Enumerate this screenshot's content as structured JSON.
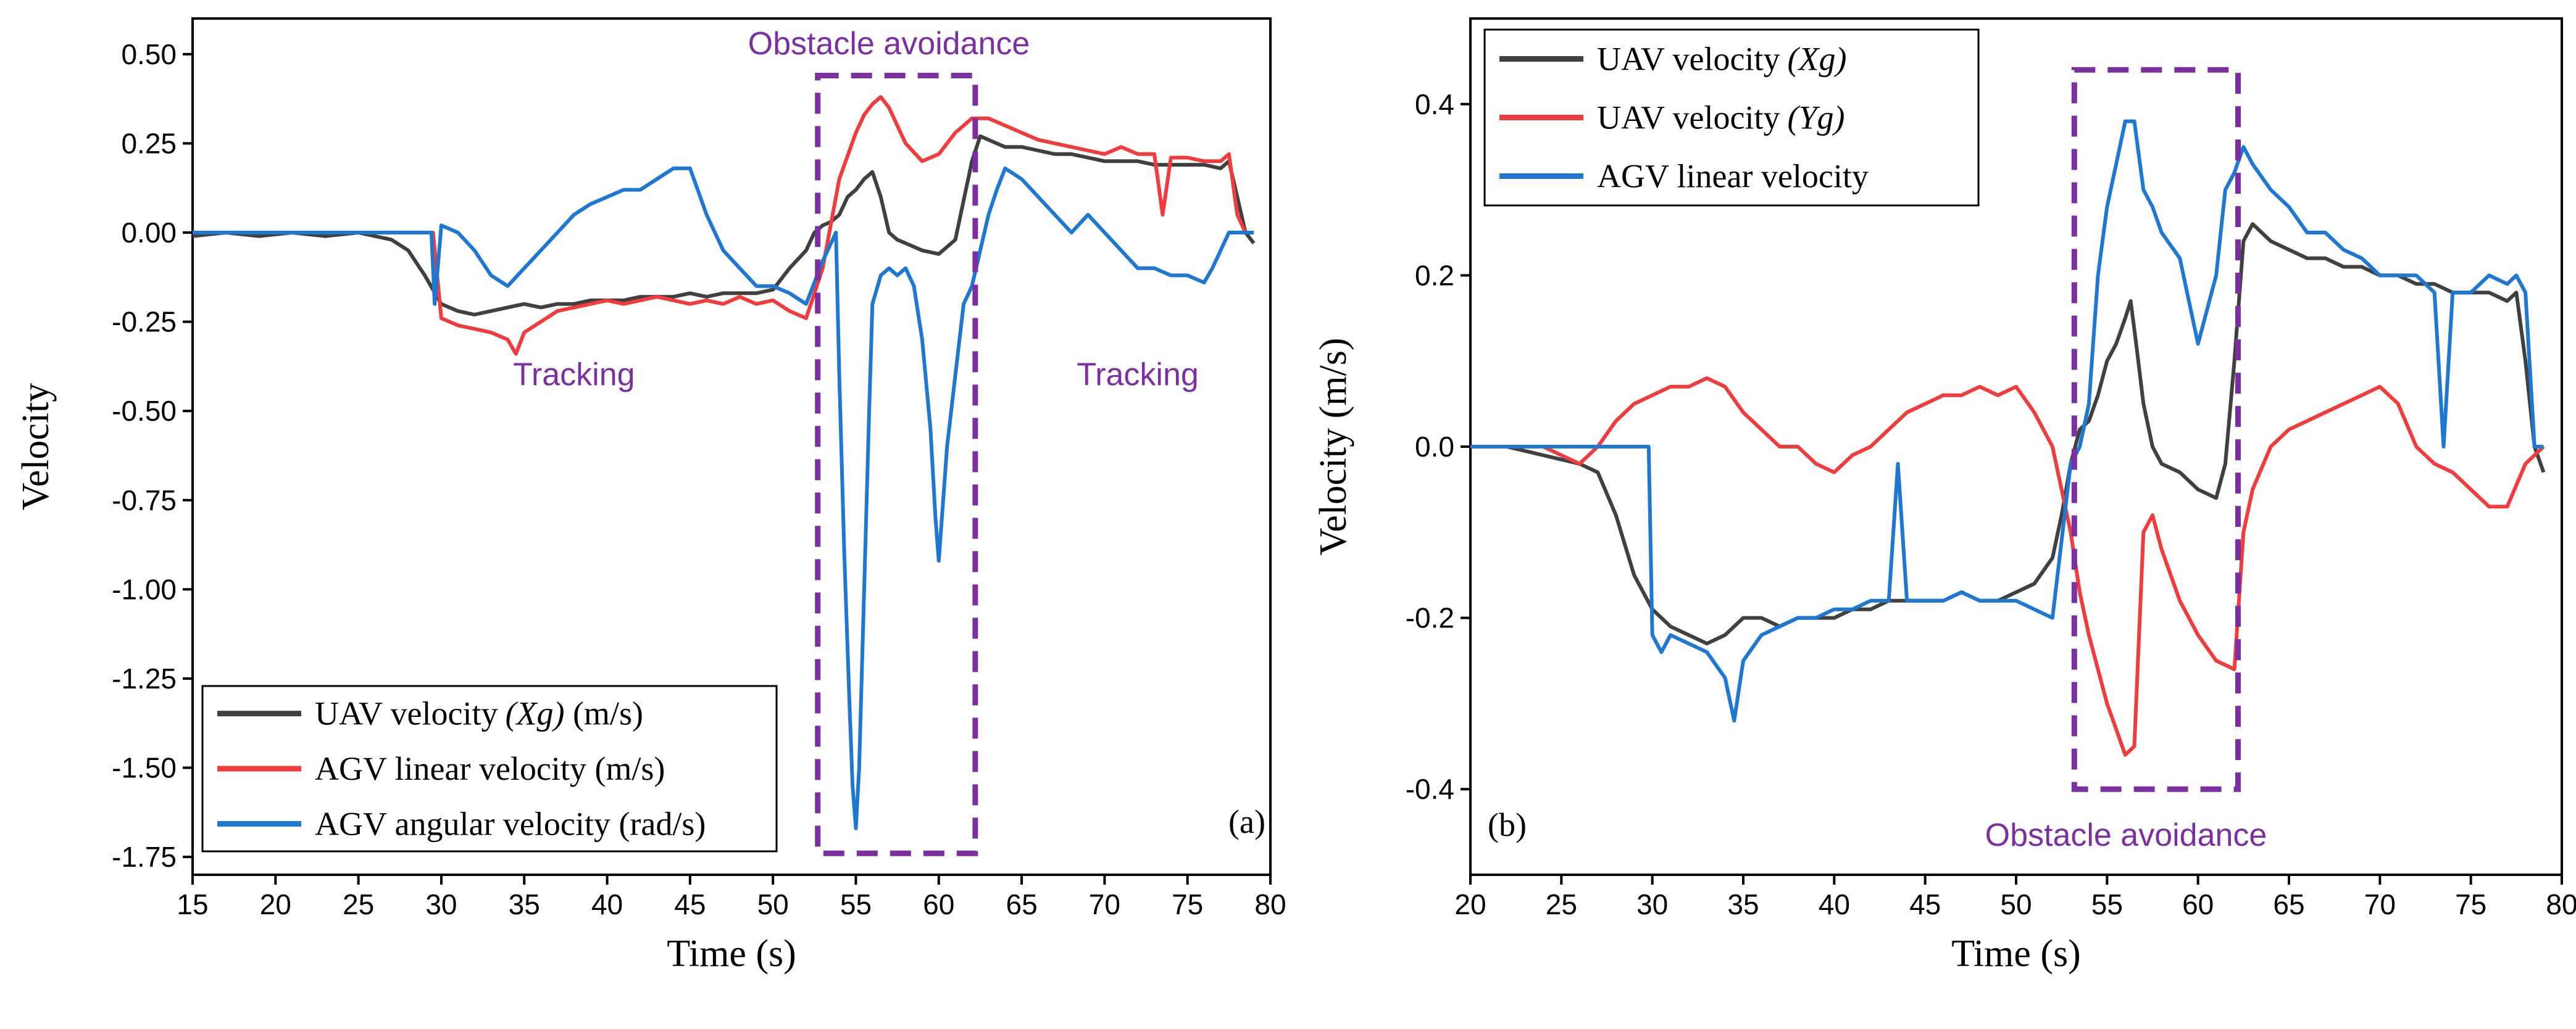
{
  "chart_data": [
    {
      "type": "line",
      "panel_label": "(a)",
      "xlabel": "Time (s)",
      "ylabel": "Velocity",
      "xlim": [
        15,
        80
      ],
      "ylim": [
        -1.8,
        0.6
      ],
      "xticks": [
        "15",
        "20",
        "25",
        "30",
        "35",
        "40",
        "45",
        "50",
        "55",
        "60",
        "65",
        "70",
        "75",
        "80"
      ],
      "yticks": [
        "0.50",
        "0.25",
        "0.00",
        "-0.25",
        "-0.50",
        "-0.75",
        "-1.00",
        "-1.25",
        "-1.50",
        "-1.75"
      ],
      "legend_position": "bottom-left",
      "annotations": [
        {
          "text": "Obstacle avoidance",
          "kind": "dashed-box",
          "x_range": [
            52.7,
            62.2
          ],
          "y_range": [
            -1.74,
            0.44
          ]
        },
        {
          "text": "Tracking",
          "x": 38,
          "y": -0.4
        },
        {
          "text": "Tracking",
          "x": 72,
          "y": -0.4
        }
      ],
      "series": [
        {
          "name": "UAV velocity",
          "legend_math": "(Xg)",
          "legend_suffix": " (m/s)",
          "color": "#404040",
          "x": [
            15,
            17,
            19,
            21,
            23,
            25,
            27,
            28,
            29,
            30,
            31,
            32,
            33,
            34,
            35,
            36,
            37,
            38,
            39,
            40,
            41,
            42,
            43,
            44,
            45,
            46,
            47,
            48,
            49,
            50,
            51,
            52,
            52.5,
            53,
            53.5,
            54,
            54.5,
            55,
            55.5,
            56,
            56.5,
            57,
            57.5,
            58,
            59,
            60,
            61,
            62,
            62.5,
            63,
            64,
            65,
            66,
            67,
            68,
            69,
            70,
            71,
            72,
            73,
            74,
            75,
            76,
            77,
            77.5,
            78,
            78.5,
            79
          ],
          "y": [
            -0.01,
            0.0,
            -0.01,
            0.0,
            -0.01,
            0.0,
            -0.02,
            -0.05,
            -0.12,
            -0.2,
            -0.22,
            -0.23,
            -0.22,
            -0.21,
            -0.2,
            -0.21,
            -0.2,
            -0.2,
            -0.19,
            -0.19,
            -0.19,
            -0.18,
            -0.18,
            -0.18,
            -0.17,
            -0.18,
            -0.17,
            -0.17,
            -0.17,
            -0.16,
            -0.1,
            -0.05,
            0.0,
            0.02,
            0.03,
            0.05,
            0.1,
            0.12,
            0.15,
            0.17,
            0.1,
            0.0,
            -0.02,
            -0.03,
            -0.05,
            -0.06,
            -0.02,
            0.2,
            0.27,
            0.26,
            0.24,
            0.24,
            0.23,
            0.22,
            0.22,
            0.21,
            0.2,
            0.2,
            0.2,
            0.19,
            0.19,
            0.19,
            0.19,
            0.18,
            0.2,
            0.1,
            0.0,
            -0.03
          ]
        },
        {
          "name": "AGV linear velocity (m/s)",
          "color": "#f03c3c",
          "x": [
            15,
            20,
            25,
            29.5,
            30,
            31,
            32,
            33,
            34,
            34.5,
            35,
            36,
            37,
            38,
            39,
            40,
            41,
            42,
            43,
            44,
            45,
            46,
            47,
            48,
            49,
            50,
            51,
            52,
            53,
            54,
            55,
            55.5,
            56,
            56.5,
            57,
            57.5,
            58,
            59,
            60,
            61,
            62,
            63,
            64,
            65,
            66,
            67,
            68,
            69,
            70,
            71,
            72,
            73,
            73.5,
            74,
            75,
            76,
            77,
            77.5,
            78,
            78.5,
            79
          ],
          "y": [
            0.0,
            0.0,
            0.0,
            0.0,
            -0.24,
            -0.26,
            -0.27,
            -0.28,
            -0.3,
            -0.34,
            -0.28,
            -0.25,
            -0.22,
            -0.21,
            -0.2,
            -0.19,
            -0.2,
            -0.19,
            -0.18,
            -0.19,
            -0.2,
            -0.19,
            -0.2,
            -0.18,
            -0.2,
            -0.19,
            -0.22,
            -0.24,
            -0.1,
            0.15,
            0.28,
            0.33,
            0.36,
            0.38,
            0.35,
            0.3,
            0.25,
            0.2,
            0.22,
            0.28,
            0.32,
            0.32,
            0.3,
            0.28,
            0.26,
            0.25,
            0.24,
            0.23,
            0.22,
            0.24,
            0.22,
            0.22,
            0.05,
            0.21,
            0.21,
            0.2,
            0.2,
            0.22,
            0.05,
            0.0,
            0.0
          ]
        },
        {
          "name": "AGV angular velocity (rad/s)",
          "color": "#1e78d2",
          "x": [
            15,
            20,
            25,
            29.4,
            29.6,
            30,
            31,
            32,
            33,
            34,
            35,
            36,
            37,
            38,
            39,
            40,
            41,
            42,
            43,
            44,
            45,
            46,
            47,
            48,
            49,
            50,
            51,
            52,
            53,
            53.8,
            54,
            54.3,
            54.6,
            54.8,
            55,
            55.2,
            55.5,
            55.8,
            56,
            56.5,
            57,
            57.5,
            58,
            58.5,
            59,
            59.5,
            59.8,
            60,
            60.5,
            61,
            61.5,
            62,
            62.5,
            63,
            63.5,
            64,
            65,
            66,
            67,
            68,
            69,
            70,
            71,
            72,
            73,
            74,
            75,
            76,
            76.5,
            77,
            77.5,
            78,
            78.5,
            79
          ],
          "y": [
            0.0,
            0.0,
            0.0,
            0.0,
            -0.2,
            0.02,
            0.0,
            -0.05,
            -0.12,
            -0.15,
            -0.1,
            -0.05,
            0.0,
            0.05,
            0.08,
            0.1,
            0.12,
            0.12,
            0.15,
            0.18,
            0.18,
            0.05,
            -0.05,
            -0.1,
            -0.15,
            -0.15,
            -0.17,
            -0.2,
            -0.08,
            0.0,
            -0.4,
            -0.9,
            -1.3,
            -1.55,
            -1.67,
            -1.5,
            -1.0,
            -0.5,
            -0.2,
            -0.12,
            -0.1,
            -0.12,
            -0.1,
            -0.15,
            -0.3,
            -0.55,
            -0.8,
            -0.92,
            -0.6,
            -0.4,
            -0.2,
            -0.15,
            -0.05,
            0.05,
            0.12,
            0.18,
            0.15,
            0.1,
            0.05,
            0.0,
            0.05,
            0.0,
            -0.05,
            -0.1,
            -0.1,
            -0.12,
            -0.12,
            -0.14,
            -0.1,
            -0.05,
            0.0,
            0.0,
            0.0,
            0.0
          ]
        }
      ]
    },
    {
      "type": "line",
      "panel_label": "(b)",
      "xlabel": "Time (s)",
      "ylabel": "Velocity (m/s)",
      "xlim": [
        20,
        80
      ],
      "ylim": [
        -0.5,
        0.5
      ],
      "xticks": [
        "20",
        "25",
        "30",
        "35",
        "40",
        "45",
        "50",
        "55",
        "60",
        "65",
        "70",
        "75",
        "80"
      ],
      "yticks": [
        "0.4",
        "0.2",
        "0.0",
        "-0.2",
        "-0.4"
      ],
      "legend_position": "top-left",
      "annotations": [
        {
          "text": "Obstacle avoidance",
          "kind": "dashed-box",
          "x_range": [
            53.2,
            62.2
          ],
          "y_range": [
            -0.4,
            0.44
          ]
        }
      ],
      "series": [
        {
          "name": "UAV velocity",
          "legend_math": "(Xg)",
          "color": "#404040",
          "x": [
            20,
            22,
            24,
            26,
            27,
            28,
            29,
            30,
            31,
            32,
            33,
            34,
            35,
            36,
            37,
            38,
            39,
            40,
            41,
            42,
            43,
            44,
            45,
            46,
            47,
            48,
            49,
            50,
            51,
            52,
            52.5,
            53,
            53.5,
            54,
            54.5,
            55,
            55.5,
            56,
            56.3,
            56.6,
            57,
            57.5,
            58,
            59,
            60,
            61,
            61.5,
            62,
            62.5,
            63,
            64,
            65,
            66,
            67,
            68,
            69,
            70,
            71,
            72,
            73,
            74,
            75,
            76,
            77,
            77.5,
            78,
            78.5,
            79
          ],
          "y": [
            0.0,
            0.0,
            -0.01,
            -0.02,
            -0.03,
            -0.08,
            -0.15,
            -0.19,
            -0.21,
            -0.22,
            -0.23,
            -0.22,
            -0.2,
            -0.2,
            -0.21,
            -0.2,
            -0.2,
            -0.2,
            -0.19,
            -0.19,
            -0.18,
            -0.18,
            -0.18,
            -0.18,
            -0.17,
            -0.18,
            -0.18,
            -0.17,
            -0.16,
            -0.13,
            -0.08,
            -0.02,
            0.02,
            0.03,
            0.06,
            0.1,
            0.12,
            0.15,
            0.17,
            0.12,
            0.05,
            0.0,
            -0.02,
            -0.03,
            -0.05,
            -0.06,
            -0.02,
            0.1,
            0.24,
            0.26,
            0.24,
            0.23,
            0.22,
            0.22,
            0.21,
            0.21,
            0.2,
            0.2,
            0.19,
            0.19,
            0.18,
            0.18,
            0.18,
            0.17,
            0.18,
            0.1,
            0.0,
            -0.03
          ]
        },
        {
          "name": "UAV velocity",
          "legend_math": "(Yg)",
          "color": "#f03c3c",
          "x": [
            20,
            22,
            24,
            26,
            27,
            28,
            29,
            30,
            31,
            32,
            33,
            34,
            35,
            36,
            37,
            38,
            39,
            40,
            41,
            42,
            43,
            44,
            45,
            46,
            47,
            48,
            49,
            50,
            51,
            52,
            53,
            53.5,
            54,
            54.5,
            55,
            55.5,
            56,
            56.5,
            57,
            57.5,
            58,
            59,
            60,
            61,
            62,
            62.5,
            63,
            64,
            65,
            66,
            67,
            68,
            69,
            70,
            71,
            72,
            73,
            74,
            75,
            76,
            77,
            78,
            79
          ],
          "y": [
            0.0,
            0.0,
            0.0,
            -0.02,
            0.0,
            0.03,
            0.05,
            0.06,
            0.07,
            0.07,
            0.08,
            0.07,
            0.04,
            0.02,
            0.0,
            0.0,
            -0.02,
            -0.03,
            -0.01,
            0.0,
            0.02,
            0.04,
            0.05,
            0.06,
            0.06,
            0.07,
            0.06,
            0.07,
            0.04,
            0.0,
            -0.1,
            -0.17,
            -0.22,
            -0.26,
            -0.3,
            -0.33,
            -0.36,
            -0.35,
            -0.1,
            -0.08,
            -0.12,
            -0.18,
            -0.22,
            -0.25,
            -0.26,
            -0.1,
            -0.05,
            0.0,
            0.02,
            0.03,
            0.04,
            0.05,
            0.06,
            0.07,
            0.05,
            0.0,
            -0.02,
            -0.03,
            -0.05,
            -0.07,
            -0.07,
            -0.02,
            0.0
          ]
        },
        {
          "name": "AGV linear velocity",
          "color": "#1e78d2",
          "x": [
            20,
            25,
            29.8,
            30,
            30.5,
            31,
            32,
            33,
            34,
            34.5,
            35,
            36,
            37,
            38,
            39,
            40,
            41,
            42,
            43,
            43.5,
            44,
            45,
            46,
            47,
            48,
            49,
            50,
            51,
            52,
            53,
            53.5,
            54,
            54.5,
            55,
            55.5,
            56,
            56.5,
            57,
            57.5,
            58,
            59,
            60,
            61,
            61.5,
            62,
            62.5,
            63,
            64,
            65,
            66,
            67,
            68,
            69,
            70,
            71,
            72,
            73,
            73.5,
            74,
            75,
            76,
            77,
            77.5,
            78,
            78.5,
            79
          ],
          "y": [
            0.0,
            0.0,
            0.0,
            -0.22,
            -0.24,
            -0.22,
            -0.23,
            -0.24,
            -0.27,
            -0.32,
            -0.25,
            -0.22,
            -0.21,
            -0.2,
            -0.2,
            -0.19,
            -0.19,
            -0.18,
            -0.18,
            -0.02,
            -0.18,
            -0.18,
            -0.18,
            -0.17,
            -0.18,
            -0.18,
            -0.18,
            -0.19,
            -0.2,
            -0.02,
            0.0,
            0.05,
            0.2,
            0.28,
            0.33,
            0.38,
            0.38,
            0.3,
            0.28,
            0.25,
            0.22,
            0.12,
            0.2,
            0.3,
            0.32,
            0.35,
            0.33,
            0.3,
            0.28,
            0.25,
            0.25,
            0.23,
            0.22,
            0.2,
            0.2,
            0.2,
            0.18,
            0.0,
            0.18,
            0.18,
            0.2,
            0.19,
            0.2,
            0.18,
            0.0,
            0.0
          ]
        }
      ]
    }
  ]
}
